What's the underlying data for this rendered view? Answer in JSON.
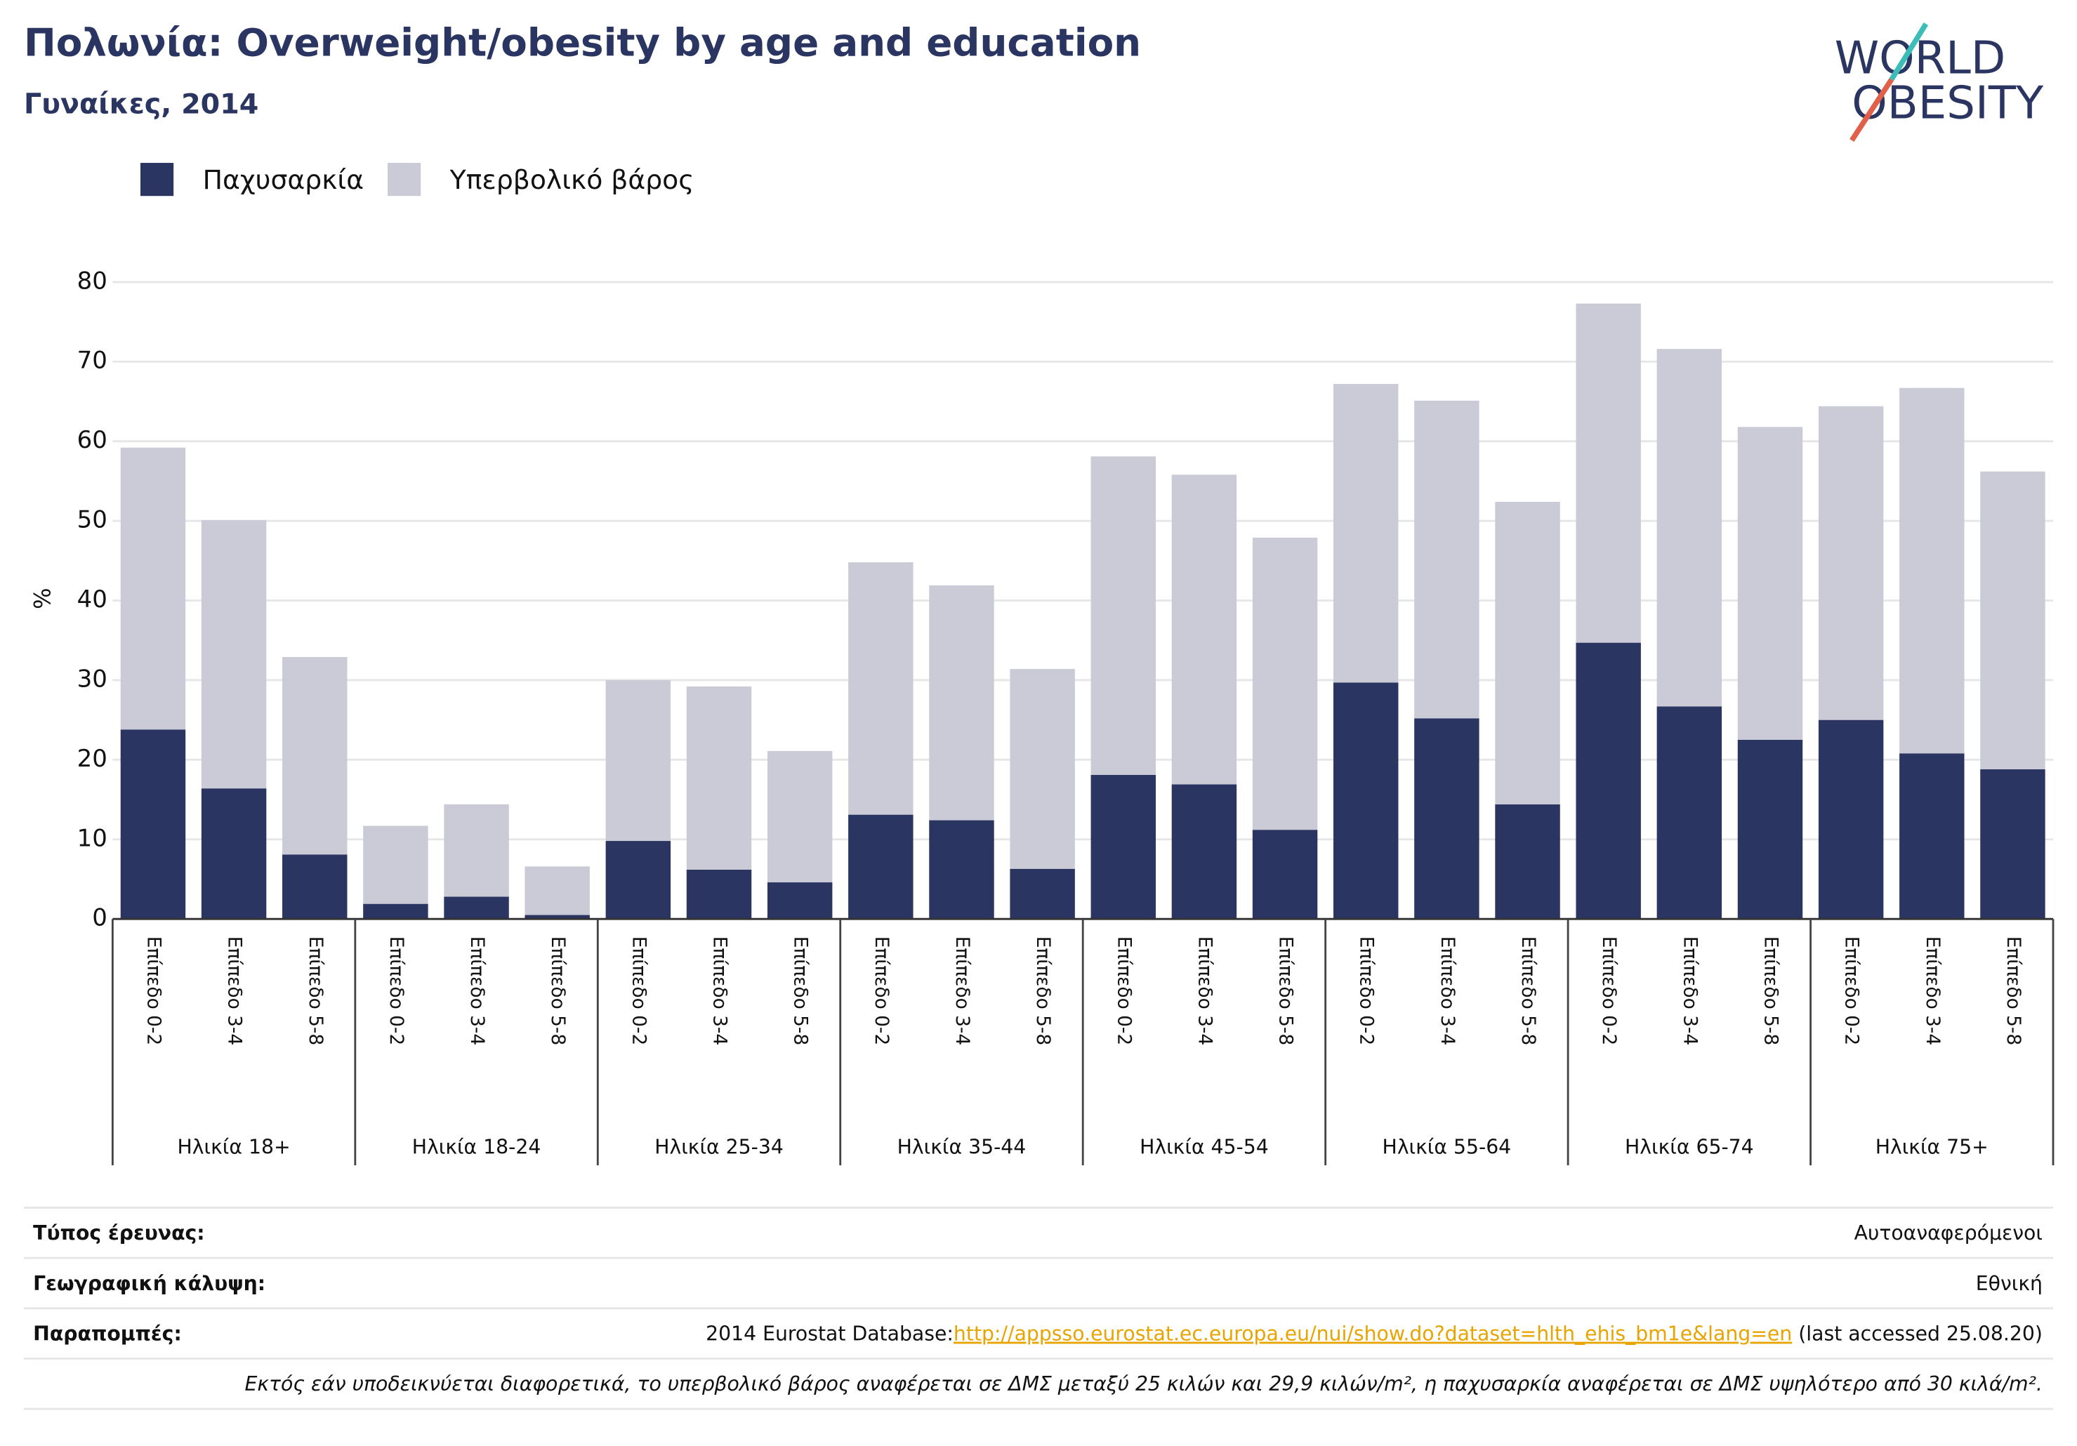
{
  "chart_data": {
    "type": "stacked-bar",
    "title": "Πολωνία: Overweight/obesity by age and education",
    "subtitle": "Γυναίκες, 2014",
    "logo": [
      "WORLD",
      "OBESITY"
    ],
    "ylabel": "%",
    "ylim": [
      0,
      80
    ],
    "yticks": [
      0,
      10,
      20,
      30,
      40,
      50,
      60,
      70,
      80
    ],
    "grid": true,
    "categories": [
      "Επίπεδο 0-2",
      "Επίπεδο 3-4",
      "Επίπεδο 5-8",
      "Επίπεδο 0-2",
      "Επίπεδο 3-4",
      "Επίπεδο 5-8",
      "Επίπεδο 0-2",
      "Επίπεδο 3-4",
      "Επίπεδο 5-8",
      "Επίπεδο 0-2",
      "Επίπεδο 3-4",
      "Επίπεδο 5-8",
      "Επίπεδο 0-2",
      "Επίπεδο 3-4",
      "Επίπεδο 5-8",
      "Επίπεδο 0-2",
      "Επίπεδο 3-4",
      "Επίπεδο 5-8",
      "Επίπεδο 0-2",
      "Επίπεδο 3-4",
      "Επίπεδο 5-8",
      "Επίπεδο 0-2",
      "Επίπεδο 3-4",
      "Επίπεδο 5-8"
    ],
    "groups": [
      "Ηλικία 18+",
      "Ηλικία 18-24",
      "Ηλικία 25-34",
      "Ηλικία 35-44",
      "Ηλικία 45-54",
      "Ηλικία 55-64",
      "Ηλικία 65-74",
      "Ηλικία 75+"
    ],
    "series": [
      {
        "name": "Παχυσαρκία",
        "color": "#2a3561",
        "values": [
          23.8,
          16.4,
          8.1,
          1.9,
          2.8,
          0.5,
          9.8,
          6.2,
          4.6,
          13.1,
          12.4,
          6.3,
          18.1,
          16.9,
          11.2,
          29.7,
          25.2,
          14.4,
          34.7,
          26.7,
          22.5,
          25.0,
          20.8,
          18.8
        ]
      },
      {
        "name": "Υπερβολικό βάρος",
        "color": "#cacbd6",
        "values": [
          35.4,
          33.7,
          24.8,
          9.8,
          11.6,
          6.1,
          20.2,
          23.0,
          16.5,
          31.7,
          29.5,
          25.1,
          40.0,
          38.9,
          36.7,
          37.5,
          39.9,
          38.0,
          42.6,
          44.9,
          39.3,
          39.4,
          45.9,
          37.4
        ]
      }
    ]
  },
  "footer": {
    "rows": [
      {
        "label": "Τύπος έρευνας:",
        "value": "Αυτοαναφερόμενοι"
      },
      {
        "label": "Γεωγραφική κάλυψη:",
        "value": "Εθνική"
      }
    ],
    "reference": {
      "label": "Παραπομπές:",
      "prefix": "2014 Eurostat Database:",
      "link": "http://appsso.eurostat.ec.europa.eu/nui/show.do?dataset=hlth_ehis_bm1e&lang=en",
      "suffix": " (last accessed 25.08.20)"
    },
    "note": "Εκτός εάν υποδεικνύεται διαφορετικά, το υπερβολικό βάρος αναφέρεται σε ΔΜΣ μεταξύ 25 κιλών και 29,9 κιλών/m², η παχυσαρκία αναφέρεται σε ΔΜΣ υψηλότερο από 30 κιλά/m²."
  }
}
